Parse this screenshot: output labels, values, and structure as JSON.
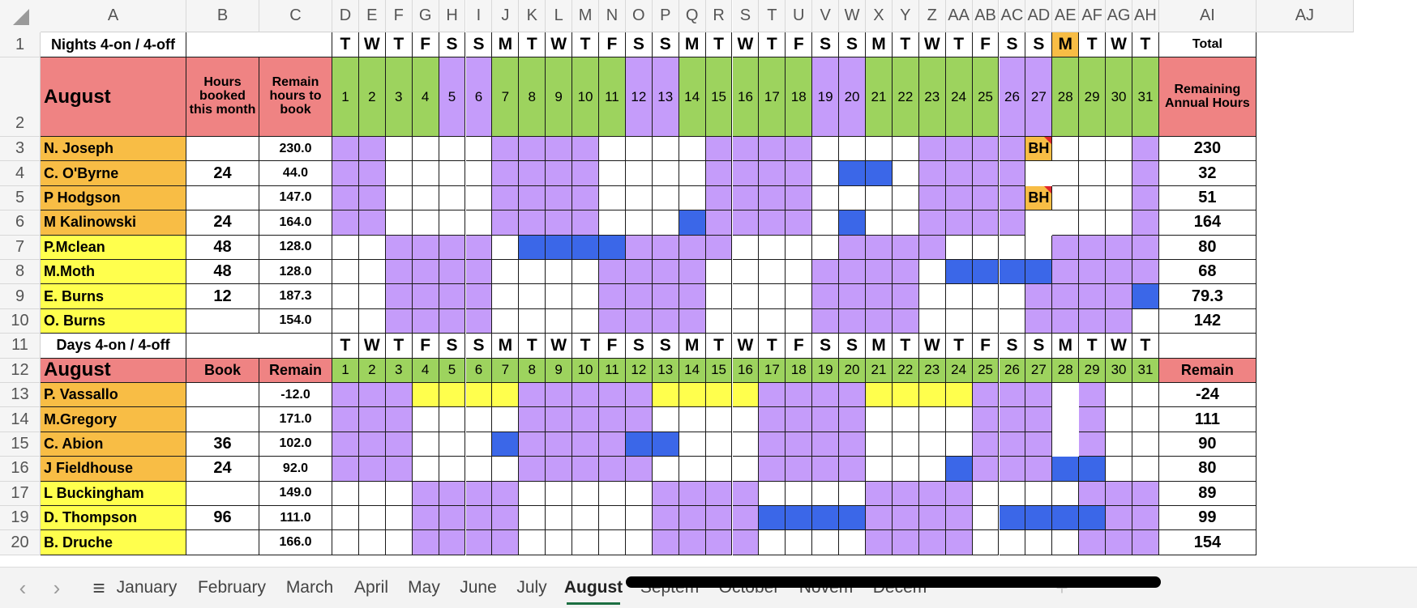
{
  "app": {
    "name": "Spreadsheet"
  },
  "columns": [
    "A",
    "B",
    "C",
    "D",
    "E",
    "F",
    "G",
    "H",
    "I",
    "J",
    "K",
    "L",
    "M",
    "N",
    "O",
    "P",
    "Q",
    "R",
    "S",
    "T",
    "U",
    "V",
    "W",
    "X",
    "Y",
    "Z",
    "AA",
    "AB",
    "AC",
    "AD",
    "AE",
    "AF",
    "AG",
    "AH",
    "AI",
    "AJ"
  ],
  "row_numbers": [
    "1",
    "2",
    "3",
    "4",
    "5",
    "6",
    "7",
    "8",
    "9",
    "10",
    "11",
    "12",
    "13",
    "14",
    "15",
    "16",
    "17",
    "19",
    "20"
  ],
  "colors": {
    "purple": "#c59cfa",
    "green": "#9dd35e",
    "blue": "#3b67e8",
    "salmon": "#ef8383",
    "orange": "#f8bd45",
    "yellow": "#ffff4d",
    "weekday_highlight": "#f8bd45"
  },
  "nights": {
    "title": "Nights 4-on / 4-off",
    "total_label": "Total",
    "month_label": "August",
    "hours_booked_header": "Hours booked this month",
    "remain_header": "Remain hours to book",
    "remaining_annual_header": "Remaining Annual Hours",
    "staff": [
      {
        "name": "N. Joseph",
        "booked": "",
        "remain": "230.0",
        "annual": "230"
      },
      {
        "name": "C. O'Byrne",
        "booked": "24",
        "remain": "44.0",
        "annual": "32"
      },
      {
        "name": "P Hodgson",
        "booked": "",
        "remain": "147.0",
        "annual": "51"
      },
      {
        "name": "M Kalinowski",
        "booked": "24",
        "remain": "164.0",
        "annual": "164"
      },
      {
        "name": "P.Mclean",
        "booked": "48",
        "remain": "128.0",
        "annual": "80"
      },
      {
        "name": "M.Moth",
        "booked": "48",
        "remain": "128.0",
        "annual": "68"
      },
      {
        "name": "E. Burns",
        "booked": "12",
        "remain": "187.3",
        "annual": "79.3"
      },
      {
        "name": "O. Burns",
        "booked": "",
        "remain": "154.0",
        "annual": "142"
      }
    ]
  },
  "days": {
    "title": "Days 4-on / 4-off",
    "month_label": "August",
    "book_header": "Book",
    "remain_header": "Remain",
    "remain_total_header": "Remain",
    "staff": [
      {
        "name": "P. Vassallo",
        "booked": "",
        "remain": "-12.0",
        "annual": "-24"
      },
      {
        "name": "M.Gregory",
        "booked": "",
        "remain": "171.0",
        "annual": "111"
      },
      {
        "name": "C. Abion",
        "booked": "36",
        "remain": "102.0",
        "annual": "90"
      },
      {
        "name": "J Fieldhouse",
        "booked": "24",
        "remain": "92.0",
        "annual": "80"
      },
      {
        "name": "L  Buckingham",
        "booked": "",
        "remain": "149.0",
        "annual": "89"
      },
      {
        "name": "D. Thompson",
        "booked": "96",
        "remain": "111.0",
        "annual": "99"
      },
      {
        "name": "B. Druche",
        "booked": "",
        "remain": "166.0",
        "annual": "154"
      }
    ]
  },
  "weekdays": [
    "T",
    "W",
    "T",
    "F",
    "S",
    "S",
    "M",
    "T",
    "W",
    "T",
    "F",
    "S",
    "S",
    "M",
    "T",
    "W",
    "T",
    "F",
    "S",
    "S",
    "M",
    "T",
    "W",
    "T",
    "F",
    "S",
    "S",
    "M",
    "T",
    "W",
    "T"
  ],
  "dates": [
    "1",
    "2",
    "3",
    "4",
    "5",
    "6",
    "7",
    "8",
    "9",
    "10",
    "11",
    "12",
    "13",
    "14",
    "15",
    "16",
    "17",
    "18",
    "19",
    "20",
    "21",
    "22",
    "23",
    "24",
    "25",
    "26",
    "27",
    "28",
    "29",
    "30",
    "31"
  ],
  "bank_holiday_label": "BH",
  "sheet_tabs": [
    "January",
    "February",
    "March",
    "April",
    "May",
    "June",
    "July",
    "August",
    "Septem",
    "October",
    "Novem",
    "Decem"
  ],
  "active_tab": "August",
  "nav_icons": {
    "prev": "‹",
    "next": "›",
    "menu": "≡",
    "add": "+"
  }
}
